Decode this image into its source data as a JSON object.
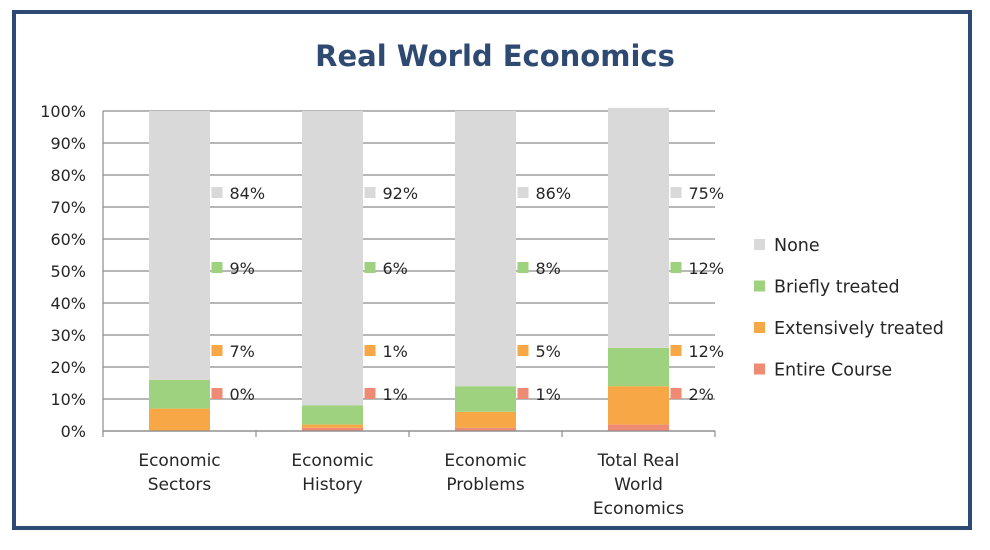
{
  "chart_data": {
    "type": "bar",
    "stacked": true,
    "normalized": true,
    "title": "Real World Economics",
    "categories": [
      "Economic Sectors",
      "Economic History",
      "Economic Problems",
      "Total Real World Economics"
    ],
    "series": [
      {
        "name": "Entire Course",
        "color": "#ef8a74",
        "values": [
          0,
          1,
          1,
          2
        ],
        "labels": [
          "0%",
          "1%",
          "1%",
          "2%"
        ]
      },
      {
        "name": "Extensively treated",
        "color": "#f7a745",
        "values": [
          7,
          1,
          5,
          12
        ],
        "labels": [
          "7%",
          "1%",
          "5%",
          "12%"
        ]
      },
      {
        "name": "Briefly treated",
        "color": "#9fd27f",
        "values": [
          9,
          6,
          8,
          12
        ],
        "labels": [
          "9%",
          "6%",
          "8%",
          "12%"
        ]
      },
      {
        "name": "None",
        "color": "#d9d9d9",
        "values": [
          84,
          92,
          86,
          75
        ],
        "labels": [
          "84%",
          "92%",
          "86%",
          "75%"
        ]
      }
    ],
    "yticks": [
      "0%",
      "10%",
      "20%",
      "30%",
      "40%",
      "50%",
      "60%",
      "70%",
      "80%",
      "90%",
      "100%"
    ],
    "ylim": [
      0,
      100
    ],
    "grid": true,
    "legend_position": "right",
    "title_color": "#2e4a73",
    "frame_color": "#2e4a73"
  }
}
